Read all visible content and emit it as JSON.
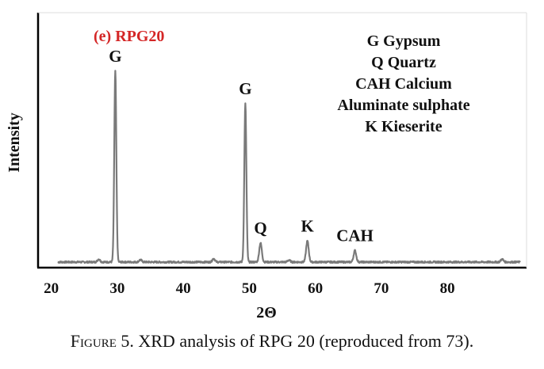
{
  "chart_data": {
    "type": "line",
    "sample_label": "(e) RPG20",
    "xlabel": "2Θ",
    "ylabel": "Intensity",
    "xlim": [
      18,
      92
    ],
    "ylim": [
      0,
      100
    ],
    "grid": false,
    "xticks": [
      20,
      30,
      40,
      50,
      60,
      70,
      80
    ],
    "legend": {
      "placement": "top-right",
      "lines": [
        "G Gypsum",
        "Q Quartz",
        "CAH Calcium",
        "Aluminate sulphate",
        "K Kieserite"
      ]
    },
    "peaks": [
      {
        "label": "G",
        "x": 29.7,
        "y": 100
      },
      {
        "label": "G",
        "x": 49.4,
        "y": 83
      },
      {
        "label": "Q",
        "x": 51.7,
        "y": 10
      },
      {
        "label": "K",
        "x": 58.8,
        "y": 11
      },
      {
        "label": "CAH",
        "x": 66.0,
        "y": 6
      }
    ],
    "minor_peaks": [
      {
        "x": 27.2,
        "y": 1.5
      },
      {
        "x": 33.5,
        "y": 1.2
      },
      {
        "x": 44.6,
        "y": 1.8
      },
      {
        "x": 56.0,
        "y": 1.0
      },
      {
        "x": 88.3,
        "y": 1.5
      }
    ],
    "colors": {
      "trace": "#7a7a7a",
      "axis": "#000000",
      "sample_label": "#d42626",
      "text": "#111111"
    }
  },
  "caption": {
    "figure_word": "Figure",
    "rest": " 5. XRD analysis of RPG 20 (reproduced from 73)."
  }
}
